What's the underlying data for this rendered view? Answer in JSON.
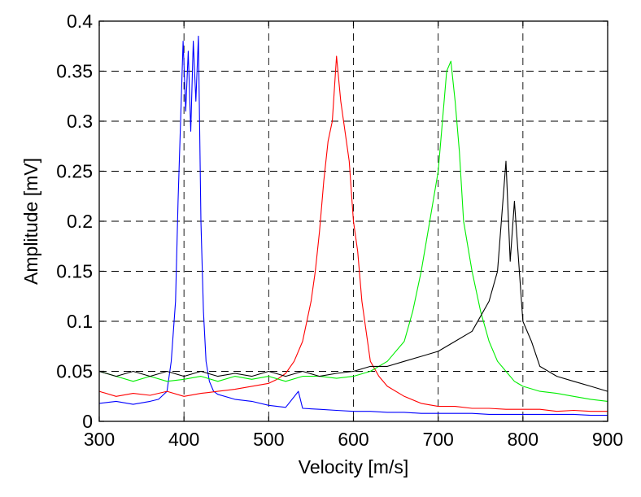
{
  "chart_data": {
    "type": "line",
    "title": "",
    "xlabel": "Velocity [m/s]",
    "ylabel": "Amplitude [mV]",
    "xlim": [
      300,
      900
    ],
    "ylim": [
      0,
      0.4
    ],
    "xticks": [
      300,
      400,
      500,
      600,
      700,
      800,
      900
    ],
    "yticks": [
      0,
      0.05,
      0.1,
      0.15,
      0.2,
      0.25,
      0.3,
      0.35,
      0.4
    ],
    "ytick_labels": [
      "0",
      "0.05",
      "0.1",
      "0.15",
      "0.2",
      "0.25",
      "0.3",
      "0.35",
      "0.4"
    ],
    "grid": true,
    "legend": "none",
    "series": [
      {
        "color": "#0000ff",
        "x": [
          300,
          320,
          340,
          360,
          370,
          380,
          385,
          390,
          393,
          396,
          399,
          402,
          405,
          408,
          411,
          414,
          417,
          420,
          423,
          426,
          430,
          435,
          440,
          460,
          480,
          500,
          520,
          535,
          540,
          560,
          580,
          600,
          620,
          640,
          660,
          680,
          700,
          720,
          740,
          760,
          780,
          800,
          820,
          840,
          860,
          880,
          900
        ],
        "y": [
          0.018,
          0.02,
          0.017,
          0.02,
          0.022,
          0.03,
          0.06,
          0.12,
          0.22,
          0.3,
          0.38,
          0.31,
          0.37,
          0.29,
          0.38,
          0.32,
          0.385,
          0.2,
          0.11,
          0.06,
          0.04,
          0.03,
          0.027,
          0.022,
          0.02,
          0.016,
          0.014,
          0.03,
          0.013,
          0.012,
          0.011,
          0.01,
          0.01,
          0.009,
          0.009,
          0.008,
          0.008,
          0.008,
          0.008,
          0.007,
          0.007,
          0.007,
          0.007,
          0.007,
          0.007,
          0.006,
          0.006
        ]
      },
      {
        "color": "#ff0000",
        "x": [
          300,
          320,
          340,
          360,
          380,
          400,
          420,
          440,
          460,
          480,
          500,
          510,
          520,
          530,
          540,
          550,
          555,
          560,
          565,
          570,
          575,
          580,
          585,
          590,
          595,
          600,
          605,
          610,
          615,
          620,
          630,
          640,
          660,
          680,
          700,
          720,
          740,
          760,
          780,
          800,
          820,
          840,
          860,
          880,
          900
        ],
        "y": [
          0.03,
          0.025,
          0.028,
          0.026,
          0.03,
          0.025,
          0.028,
          0.03,
          0.032,
          0.035,
          0.038,
          0.042,
          0.048,
          0.06,
          0.08,
          0.12,
          0.15,
          0.19,
          0.24,
          0.28,
          0.3,
          0.365,
          0.32,
          0.29,
          0.26,
          0.2,
          0.17,
          0.12,
          0.09,
          0.06,
          0.045,
          0.035,
          0.025,
          0.018,
          0.015,
          0.015,
          0.013,
          0.013,
          0.012,
          0.012,
          0.012,
          0.01,
          0.011,
          0.01,
          0.01
        ]
      },
      {
        "color": "#00ee00",
        "x": [
          300,
          320,
          340,
          360,
          380,
          400,
          420,
          440,
          460,
          480,
          500,
          520,
          540,
          560,
          580,
          600,
          620,
          640,
          660,
          670,
          680,
          690,
          700,
          705,
          710,
          715,
          720,
          725,
          730,
          740,
          750,
          760,
          770,
          780,
          790,
          800,
          820,
          840,
          860,
          880,
          900
        ],
        "y": [
          0.05,
          0.045,
          0.04,
          0.045,
          0.04,
          0.042,
          0.045,
          0.04,
          0.045,
          0.042,
          0.045,
          0.04,
          0.045,
          0.045,
          0.043,
          0.045,
          0.05,
          0.06,
          0.08,
          0.11,
          0.15,
          0.2,
          0.25,
          0.3,
          0.35,
          0.36,
          0.32,
          0.27,
          0.2,
          0.15,
          0.11,
          0.08,
          0.06,
          0.05,
          0.04,
          0.035,
          0.03,
          0.028,
          0.025,
          0.022,
          0.02
        ]
      },
      {
        "color": "#000000",
        "x": [
          300,
          320,
          340,
          360,
          380,
          400,
          420,
          440,
          460,
          480,
          500,
          520,
          540,
          560,
          580,
          600,
          620,
          640,
          660,
          680,
          700,
          720,
          740,
          760,
          770,
          780,
          785,
          790,
          800,
          810,
          820,
          840,
          860,
          880,
          900
        ],
        "y": [
          0.05,
          0.045,
          0.05,
          0.045,
          0.05,
          0.045,
          0.05,
          0.045,
          0.048,
          0.045,
          0.05,
          0.045,
          0.05,
          0.045,
          0.048,
          0.05,
          0.055,
          0.055,
          0.06,
          0.065,
          0.07,
          0.08,
          0.09,
          0.12,
          0.15,
          0.26,
          0.16,
          0.22,
          0.1,
          0.08,
          0.055,
          0.045,
          0.04,
          0.035,
          0.03
        ]
      }
    ]
  }
}
